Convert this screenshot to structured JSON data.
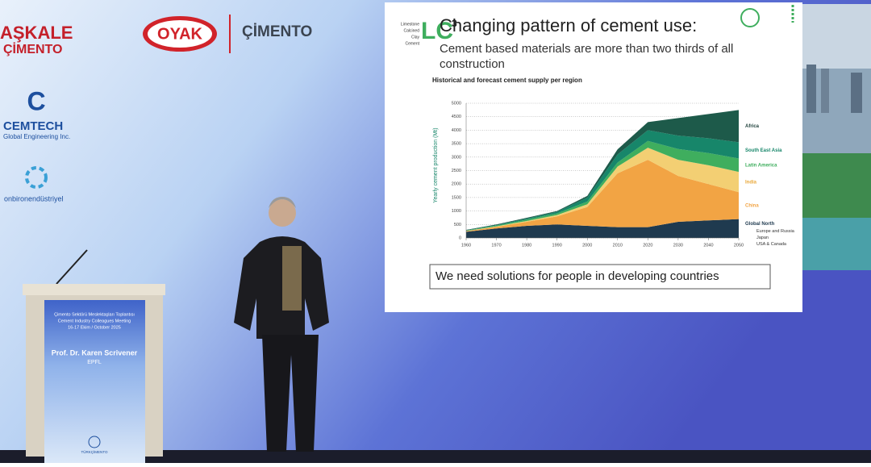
{
  "logos": {
    "askale": "AŞKALE",
    "askale_sub": "ÇİMENTO",
    "oyak": "OYAK",
    "oyak_sub": "ÇİMENTO",
    "cemtech": "CEMTECH",
    "cemtech_sub": "Global Engineering Inc.",
    "onbiron": "onbironendüstriyel"
  },
  "slide": {
    "logo_main": "LC",
    "logo_sup": "3",
    "logo_words": [
      "Limestone",
      "Calcined",
      "Clay",
      "Cement"
    ],
    "title": "Changing pattern of cement use:",
    "subtitle_1": "Cement based materials are more than two thirds of all",
    "subtitle_2": "construction",
    "message": "We need solutions for people in developing countries",
    "chart": {
      "type": "area",
      "title": "Historical and forecast cement supply per region",
      "y_label": "Yearly cement production (Mt)",
      "x": [
        1960,
        1970,
        1980,
        1990,
        2000,
        2010,
        2020,
        2030,
        2040,
        2050
      ],
      "xlim": [
        1960,
        2050
      ],
      "xticks": [
        1960,
        1970,
        1980,
        1990,
        2000,
        2010,
        2020,
        2030,
        2040,
        2050
      ],
      "ylim": [
        0,
        5000
      ],
      "yticks": [
        0,
        500,
        1000,
        1500,
        2000,
        2500,
        3000,
        3500,
        4000,
        4500,
        5000
      ],
      "grid": true,
      "stacked": true,
      "series": [
        {
          "name": "Global North",
          "color": "#1f3a4f",
          "values": [
            230,
            350,
            450,
            500,
            450,
            400,
            400,
            600,
            650,
            700
          ]
        },
        {
          "name": "China",
          "color": "#f2a444",
          "values": [
            20,
            60,
            150,
            300,
            700,
            2000,
            2500,
            1700,
            1350,
            1000
          ]
        },
        {
          "name": "India",
          "color": "#f3cf73",
          "values": [
            10,
            20,
            30,
            50,
            100,
            250,
            450,
            600,
            700,
            750
          ]
        },
        {
          "name": "Latin America",
          "color": "#3fae5e",
          "values": [
            15,
            30,
            50,
            60,
            100,
            150,
            250,
            400,
            450,
            500
          ]
        },
        {
          "name": "South East Asia",
          "color": "#17866a",
          "values": [
            10,
            20,
            40,
            60,
            150,
            300,
            400,
            500,
            550,
            600
          ]
        },
        {
          "name": "Africa",
          "color": "#1d5a4a",
          "values": [
            15,
            20,
            30,
            30,
            60,
            190,
            300,
            650,
            900,
            1200
          ]
        }
      ],
      "label_colors": [
        "#1f3a4f",
        "#f2a444",
        "#e9a93a",
        "#3fae5e",
        "#17866a",
        "#1d3f3a"
      ],
      "global_north_regions": [
        "Europe and Russia",
        "Japan",
        "USA & Canada"
      ]
    }
  },
  "podium": {
    "event_tr": "Çimento Sektörü Meslektaşları Toplantısı",
    "event_en": "Cement Industry Colleagues Meeting",
    "dates": "16-17 Ekim / October 2025",
    "speaker": "Prof. Dr. Karen Scrivener",
    "affiliation": "EPFL",
    "organizer": "TÜRKÇİMENTO"
  }
}
